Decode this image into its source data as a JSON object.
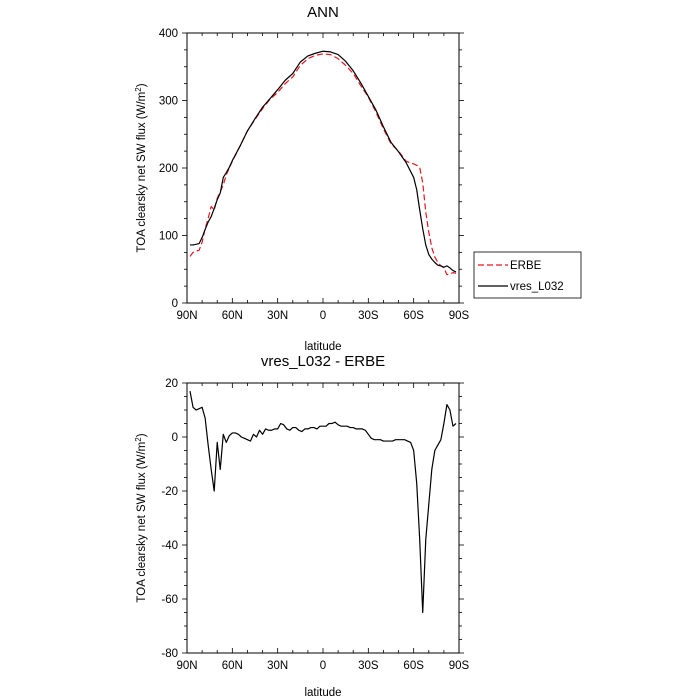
{
  "chart_data": [
    {
      "type": "line",
      "title": "ANN",
      "xlabel": "latitude",
      "ylabel_main": "TOA clearsky net SW flux (W/m",
      "ylabel_sup": "2",
      "ylabel_end": ")",
      "xlim": [
        -90,
        90
      ],
      "ylim": [
        0,
        400
      ],
      "x_ticks": [
        {
          "value": -90,
          "label": "90N"
        },
        {
          "value": -60,
          "label": "60N"
        },
        {
          "value": -30,
          "label": "30N"
        },
        {
          "value": 0,
          "label": "0"
        },
        {
          "value": 30,
          "label": "30S"
        },
        {
          "value": 60,
          "label": "60S"
        },
        {
          "value": 90,
          "label": "90S"
        }
      ],
      "y_ticks": [
        0,
        100,
        200,
        300,
        400
      ],
      "legend_position": "right",
      "series": [
        {
          "name": "ERBE",
          "color": "#e8161e",
          "dash": "dashed",
          "x": [
            -88,
            -86,
            -84,
            -82,
            -80,
            -78,
            -76,
            -74,
            -72,
            -70,
            -68,
            -66,
            -64,
            -62,
            -60,
            -55,
            -50,
            -45,
            -40,
            -35,
            -30,
            -25,
            -20,
            -15,
            -10,
            -5,
            0,
            5,
            10,
            15,
            20,
            25,
            30,
            35,
            40,
            45,
            50,
            55,
            60,
            62,
            64,
            66,
            68,
            70,
            72,
            74,
            76,
            78,
            80,
            82,
            84,
            86,
            88
          ],
          "y": [
            69,
            75,
            77,
            78,
            90,
            110,
            125,
            143,
            138,
            155,
            165,
            175,
            190,
            200,
            210,
            232,
            255,
            272,
            288,
            302,
            312,
            325,
            335,
            352,
            362,
            367,
            369,
            368,
            362,
            352,
            340,
            322,
            305,
            283,
            258,
            236,
            225,
            210,
            206,
            204,
            201,
            178,
            135,
            105,
            82,
            68,
            60,
            55,
            52,
            42,
            43,
            45,
            44
          ]
        },
        {
          "name": "vres_L032",
          "color": "#000000",
          "dash": "solid",
          "x": [
            -88,
            -86,
            -84,
            -82,
            -80,
            -78,
            -76,
            -74,
            -72,
            -70,
            -68,
            -66,
            -64,
            -62,
            -60,
            -55,
            -50,
            -45,
            -40,
            -35,
            -30,
            -25,
            -20,
            -15,
            -10,
            -5,
            0,
            5,
            10,
            15,
            20,
            25,
            30,
            35,
            40,
            45,
            50,
            55,
            60,
            62,
            64,
            66,
            68,
            70,
            72,
            74,
            76,
            78,
            80,
            82,
            84,
            86,
            88
          ],
          "y": [
            86,
            86,
            87,
            88,
            97,
            109,
            120,
            128,
            140,
            153,
            163,
            186,
            193,
            201,
            211,
            232,
            255,
            273,
            290,
            303,
            316,
            330,
            340,
            357,
            366,
            370,
            373,
            372,
            368,
            358,
            344,
            326,
            306,
            286,
            261,
            238,
            224,
            208,
            186,
            168,
            138,
            110,
            86,
            72,
            65,
            60,
            56,
            55,
            53,
            55,
            52,
            48,
            46
          ]
        }
      ]
    },
    {
      "type": "line",
      "title": "vres_L032 - ERBE",
      "xlabel": "latitude",
      "ylabel_main": "TOA clearsky net SW flux (W/m",
      "ylabel_sup": "2",
      "ylabel_end": ")",
      "xlim": [
        -90,
        90
      ],
      "ylim": [
        -80,
        20
      ],
      "x_ticks": [
        {
          "value": -90,
          "label": "90N"
        },
        {
          "value": -60,
          "label": "60N"
        },
        {
          "value": -30,
          "label": "30N"
        },
        {
          "value": 0,
          "label": "0"
        },
        {
          "value": 30,
          "label": "30S"
        },
        {
          "value": 60,
          "label": "60S"
        },
        {
          "value": 90,
          "label": "90S"
        }
      ],
      "y_ticks": [
        -80,
        -60,
        -40,
        -20,
        0,
        20
      ],
      "series": [
        {
          "name": "",
          "color": "#000000",
          "dash": "solid",
          "x": [
            -88,
            -86,
            -84,
            -82,
            -80,
            -78,
            -76,
            -74,
            -72,
            -70,
            -68,
            -66,
            -64,
            -62,
            -60,
            -58,
            -56,
            -54,
            -52,
            -50,
            -48,
            -46,
            -44,
            -42,
            -40,
            -38,
            -36,
            -34,
            -32,
            -30,
            -28,
            -26,
            -24,
            -22,
            -20,
            -18,
            -16,
            -14,
            -12,
            -10,
            -8,
            -6,
            -4,
            -2,
            0,
            2,
            4,
            6,
            8,
            10,
            12,
            14,
            16,
            18,
            20,
            22,
            24,
            26,
            28,
            30,
            32,
            34,
            36,
            38,
            40,
            42,
            44,
            46,
            48,
            50,
            52,
            54,
            56,
            58,
            60,
            62,
            64,
            66,
            68,
            70,
            72,
            74,
            76,
            78,
            80,
            82,
            84,
            86,
            88
          ],
          "y": [
            17,
            11,
            10,
            10.5,
            11,
            7,
            -3,
            -12,
            -20,
            -2,
            -12,
            1,
            -2,
            0.5,
            1.5,
            1.5,
            1,
            0,
            -0.5,
            -1,
            -1.5,
            1,
            0,
            2.5,
            1,
            3,
            2.5,
            2.5,
            3,
            3,
            5,
            4.5,
            3,
            2.5,
            3.5,
            3.5,
            2.5,
            2,
            3,
            3,
            3.5,
            3.5,
            3,
            4,
            4,
            4,
            5,
            5,
            5.5,
            4.5,
            4,
            4,
            4,
            3.5,
            3.5,
            3,
            3,
            3,
            2.5,
            1,
            -0.5,
            -1,
            -1,
            -1,
            -1.5,
            -1.5,
            -1.5,
            -1.5,
            -1,
            -1,
            -1,
            -1,
            -1.5,
            -2,
            -5,
            -17,
            -38,
            -65,
            -38,
            -25,
            -12,
            -5,
            -3,
            -1,
            5,
            12,
            10,
            4,
            5
          ]
        }
      ]
    }
  ],
  "legend": {
    "items": [
      {
        "name": "ERBE",
        "color": "#e8161e",
        "dash": "dashed"
      },
      {
        "name": "vres_L032",
        "color": "#000000",
        "dash": "solid"
      }
    ]
  }
}
